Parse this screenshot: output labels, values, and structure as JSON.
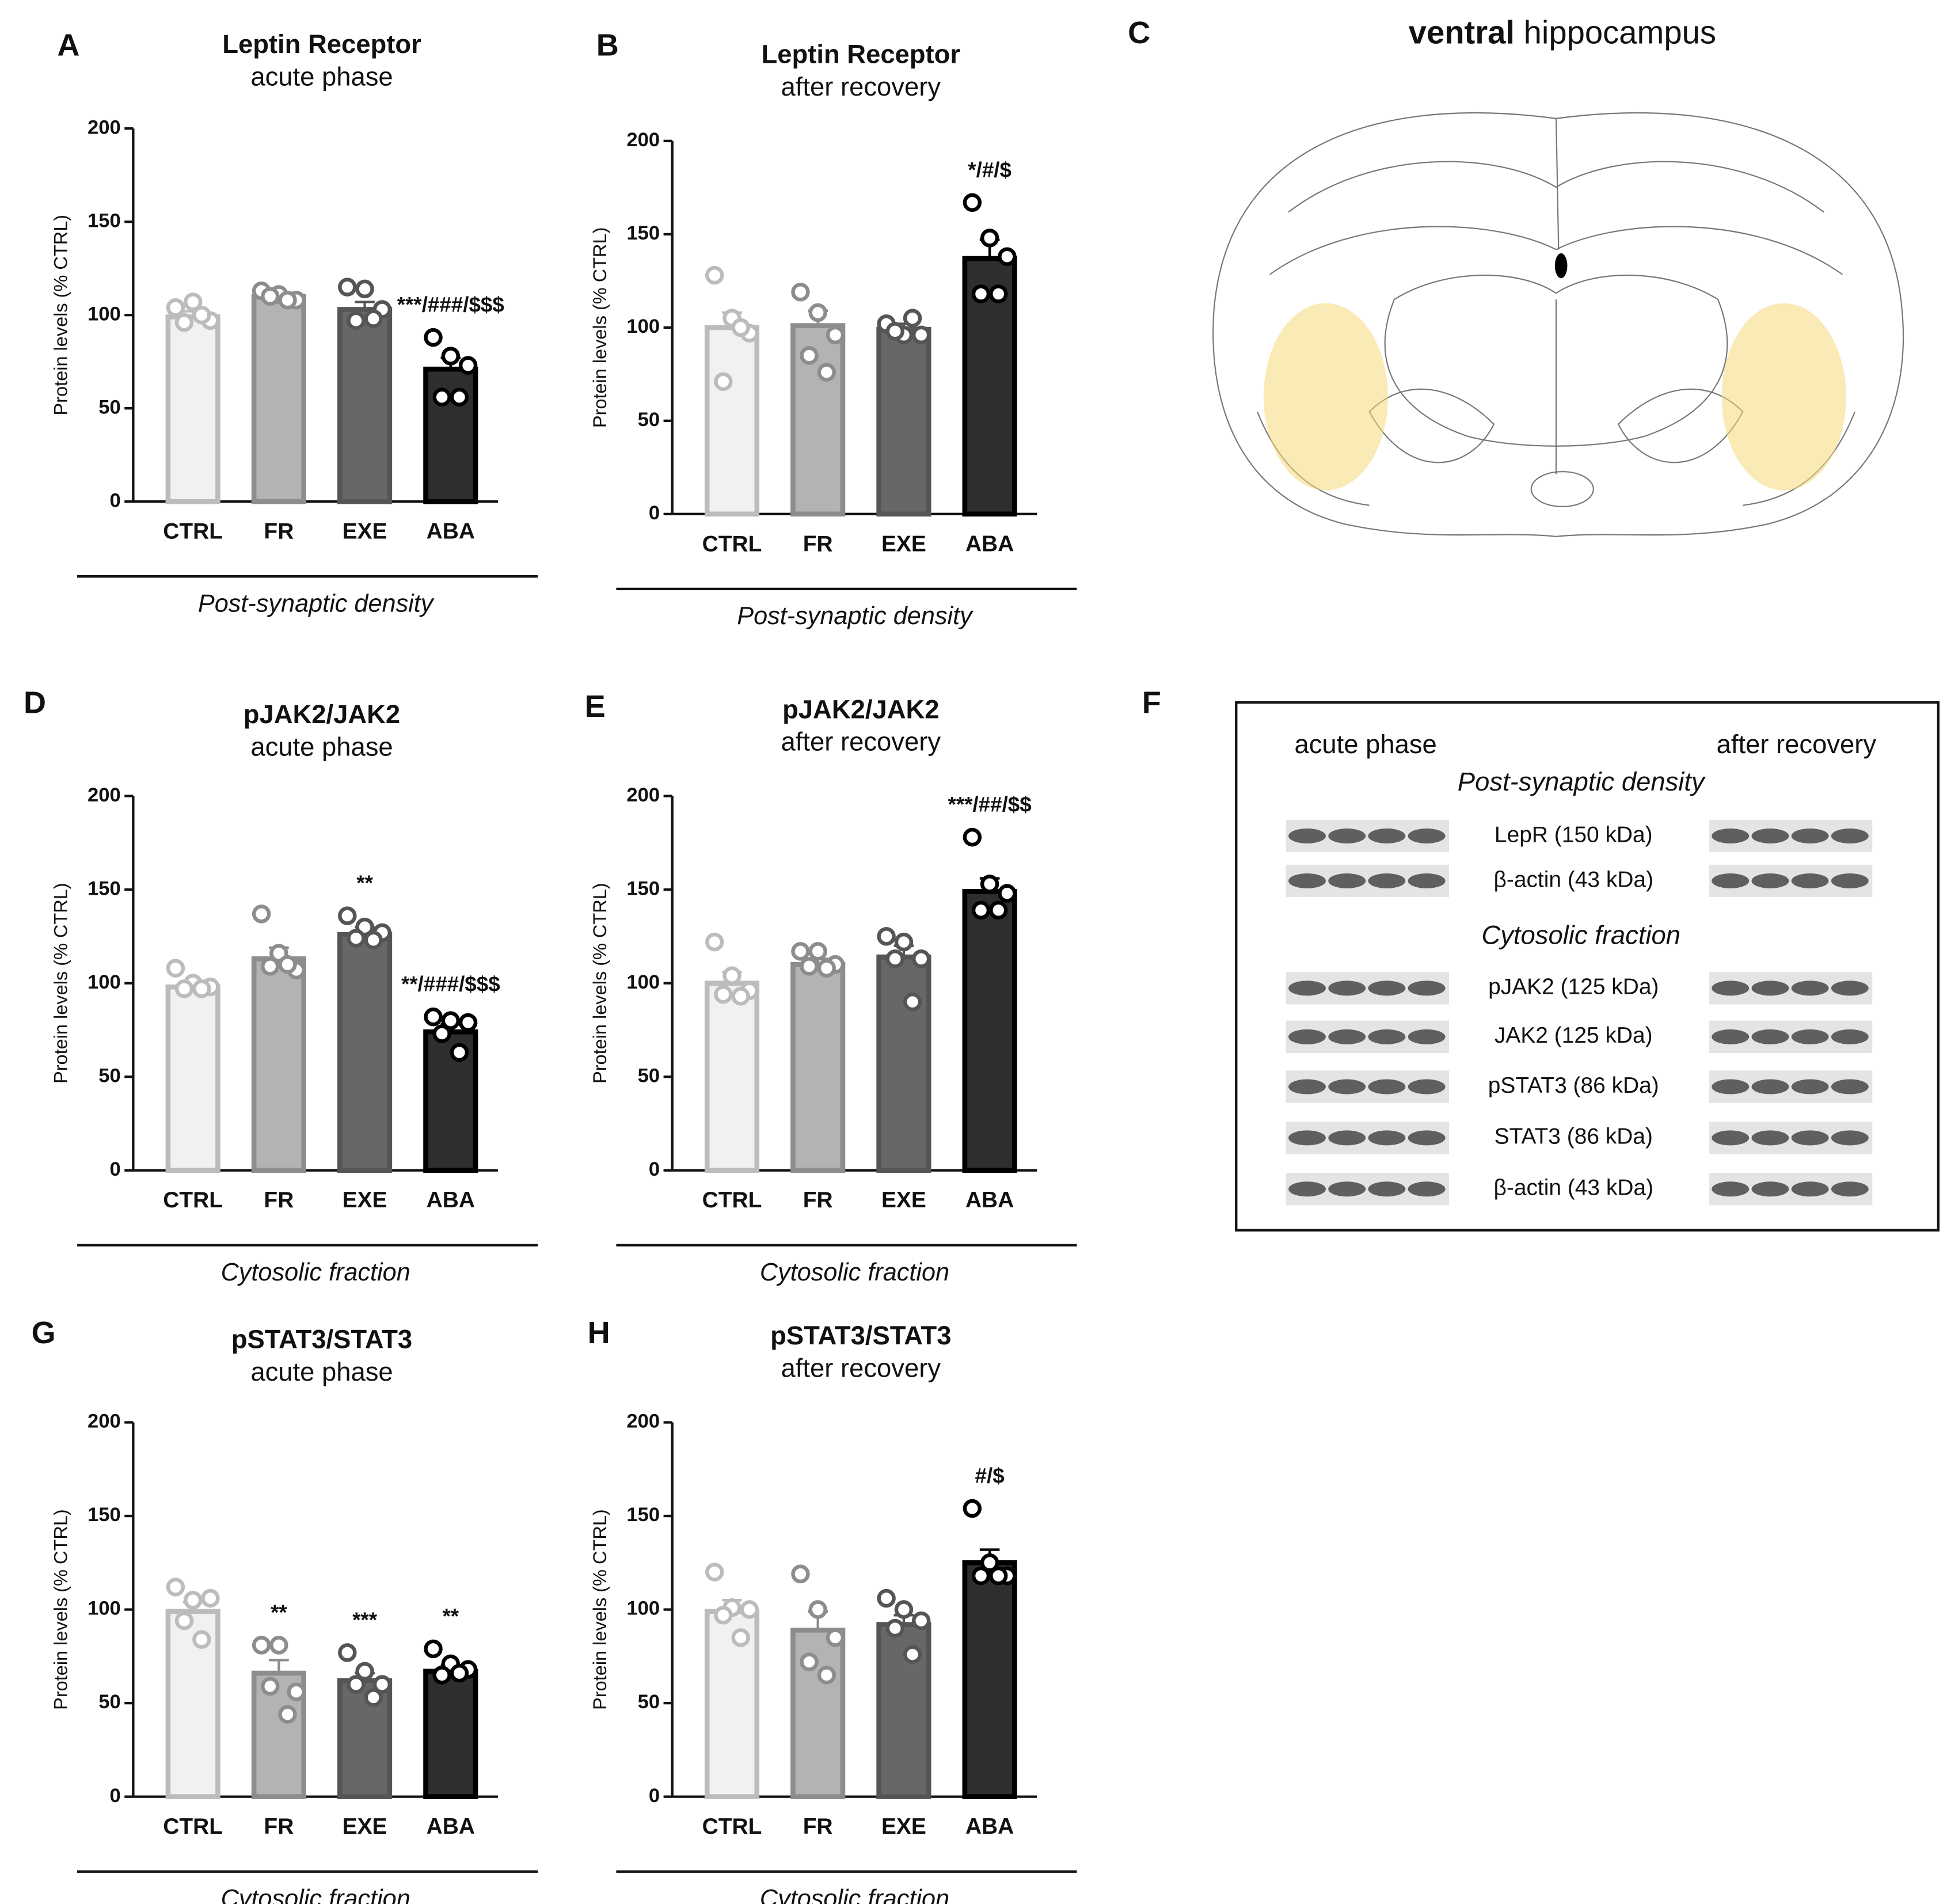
{
  "chart_data": [
    {
      "type": "bar",
      "panel": "A",
      "title": "Leptin Receptor",
      "subtitle": "acute phase",
      "ylabel": "Protein levels (% CTRL)",
      "xlabel": "Post-synaptic density",
      "categories": [
        "CTRL",
        "FR",
        "EXE",
        "ABA"
      ],
      "values": [
        99,
        110,
        103,
        71
      ],
      "errors": [
        3,
        2,
        4,
        6
      ],
      "points": [
        [
          104,
          107,
          97,
          96,
          100
        ],
        [
          113,
          111,
          108,
          110,
          108
        ],
        [
          115,
          114,
          103,
          97,
          98
        ],
        [
          88,
          78,
          73,
          56,
          56
        ]
      ],
      "annotations": [
        null,
        null,
        null,
        "***/###/$$$"
      ],
      "ylim": [
        0,
        200
      ],
      "yticks": [
        0,
        50,
        100,
        150,
        200
      ],
      "colors": [
        "#f1f1f1",
        "#b3b3b3",
        "#676767",
        "#2e2e2e"
      ],
      "edge_colors": [
        "#bcbcbc",
        "#8d8d8d",
        "#555555",
        "#000000"
      ]
    },
    {
      "type": "bar",
      "panel": "B",
      "title": "Leptin Receptor",
      "subtitle": "after recovery",
      "ylabel": "Protein levels (% CTRL)",
      "xlabel": "Post-synaptic density",
      "categories": [
        "CTRL",
        "FR",
        "EXE",
        "ABA"
      ],
      "values": [
        100,
        101,
        99,
        137
      ],
      "errors": [
        8,
        8,
        3,
        10
      ],
      "points": [
        [
          128,
          105,
          97,
          71,
          100
        ],
        [
          119,
          108,
          96,
          85,
          76
        ],
        [
          102,
          96,
          96,
          98,
          105
        ],
        [
          167,
          148,
          138,
          118,
          118
        ]
      ],
      "annotations": [
        null,
        null,
        null,
        "*/#/$"
      ],
      "ylim": [
        0,
        200
      ],
      "yticks": [
        0,
        50,
        100,
        150,
        200
      ],
      "colors": [
        "#f1f1f1",
        "#b3b3b3",
        "#676767",
        "#2e2e2e"
      ],
      "edge_colors": [
        "#bcbcbc",
        "#8d8d8d",
        "#555555",
        "#000000"
      ]
    },
    {
      "type": "bar",
      "panel": "D",
      "title": "pJAK2/JAK2",
      "subtitle": "acute phase",
      "ylabel": "Protein levels (% CTRL)",
      "xlabel": "Cytosolic fraction",
      "categories": [
        "CTRL",
        "FR",
        "EXE",
        "ABA"
      ],
      "values": [
        98,
        113,
        126,
        74
      ],
      "errors": [
        2,
        6,
        4,
        4
      ],
      "points": [
        [
          108,
          100,
          98,
          97,
          97
        ],
        [
          137,
          116,
          107,
          109,
          110
        ],
        [
          136,
          130,
          127,
          124,
          123
        ],
        [
          82,
          80,
          79,
          73,
          63
        ]
      ],
      "annotations": [
        null,
        null,
        "**",
        "**/###/$$$"
      ],
      "ylim": [
        0,
        200
      ],
      "yticks": [
        0,
        50,
        100,
        150,
        200
      ],
      "colors": [
        "#f1f1f1",
        "#b3b3b3",
        "#676767",
        "#2e2e2e"
      ],
      "edge_colors": [
        "#bcbcbc",
        "#8d8d8d",
        "#555555",
        "#000000"
      ]
    },
    {
      "type": "bar",
      "panel": "E",
      "title": "pJAK2/JAK2",
      "subtitle": "after recovery",
      "ylabel": "Protein levels (% CTRL)",
      "xlabel": "Cytosolic fraction",
      "categories": [
        "CTRL",
        "FR",
        "EXE",
        "ABA"
      ],
      "values": [
        100,
        110,
        114,
        149
      ],
      "errors": [
        6,
        3,
        6,
        7
      ],
      "points": [
        [
          122,
          104,
          96,
          94,
          93
        ],
        [
          117,
          117,
          110,
          109,
          108
        ],
        [
          125,
          122,
          113,
          113,
          90
        ],
        [
          178,
          153,
          148,
          139,
          139
        ]
      ],
      "annotations": [
        null,
        null,
        null,
        "***/##/$$"
      ],
      "ylim": [
        0,
        200
      ],
      "yticks": [
        0,
        50,
        100,
        150,
        200
      ],
      "colors": [
        "#f1f1f1",
        "#b3b3b3",
        "#676767",
        "#2e2e2e"
      ],
      "edge_colors": [
        "#bcbcbc",
        "#8d8d8d",
        "#555555",
        "#000000"
      ]
    },
    {
      "type": "bar",
      "panel": "G",
      "title": "pSTAT3/STAT3",
      "subtitle": "acute phase",
      "ylabel": "Protein levels (% CTRL)",
      "xlabel": "Cytosolic fraction",
      "categories": [
        "CTRL",
        "FR",
        "EXE",
        "ABA"
      ],
      "values": [
        99,
        66,
        62,
        67
      ],
      "errors": [
        5,
        7,
        4,
        3
      ],
      "points": [
        [
          112,
          105,
          106,
          94,
          84
        ],
        [
          81,
          81,
          56,
          59,
          44
        ],
        [
          77,
          67,
          60,
          60,
          53
        ],
        [
          79,
          71,
          68,
          65,
          66
        ]
      ],
      "annotations": [
        null,
        "**",
        "***",
        "**"
      ],
      "ylim": [
        0,
        200
      ],
      "yticks": [
        0,
        50,
        100,
        150,
        200
      ],
      "colors": [
        "#f1f1f1",
        "#b3b3b3",
        "#676767",
        "#2e2e2e"
      ],
      "edge_colors": [
        "#bcbcbc",
        "#8d8d8d",
        "#555555",
        "#000000"
      ]
    },
    {
      "type": "bar",
      "panel": "H",
      "title": "pSTAT3/STAT3",
      "subtitle": "after recovery",
      "ylabel": "Protein levels (% CTRL)",
      "xlabel": "Cytosolic fraction",
      "categories": [
        "CTRL",
        "FR",
        "EXE",
        "ABA"
      ],
      "values": [
        99,
        89,
        92,
        125
      ],
      "errors": [
        6,
        10,
        5,
        7
      ],
      "points": [
        [
          120,
          101,
          100,
          97,
          85
        ],
        [
          119,
          100,
          85,
          72,
          65
        ],
        [
          106,
          100,
          94,
          90,
          76
        ],
        [
          154,
          125,
          118,
          118,
          118
        ]
      ],
      "annotations": [
        null,
        null,
        null,
        "#/$"
      ],
      "ylim": [
        0,
        200
      ],
      "yticks": [
        0,
        50,
        100,
        150,
        200
      ],
      "colors": [
        "#f1f1f1",
        "#b3b3b3",
        "#676767",
        "#2e2e2e"
      ],
      "edge_colors": [
        "#bcbcbc",
        "#8d8d8d",
        "#555555",
        "#000000"
      ]
    }
  ],
  "panel_c": {
    "panel": "C",
    "title_bold": "ventral",
    "title_rest": "hippocampus"
  },
  "panel_f": {
    "panel": "F",
    "columns": [
      "acute phase",
      "after recovery"
    ],
    "sections": [
      {
        "title": "Post-synaptic density",
        "rows": [
          "LepR (150 kDa)",
          "β-actin (43 kDa)"
        ]
      },
      {
        "title": "Cytosolic fraction",
        "rows": [
          "pJAK2 (125 kDa)",
          "JAK2 (125 kDa)",
          "pSTAT3 (86 kDa)",
          "STAT3 (86 kDa)",
          "β-actin (43 kDa)"
        ]
      }
    ]
  }
}
